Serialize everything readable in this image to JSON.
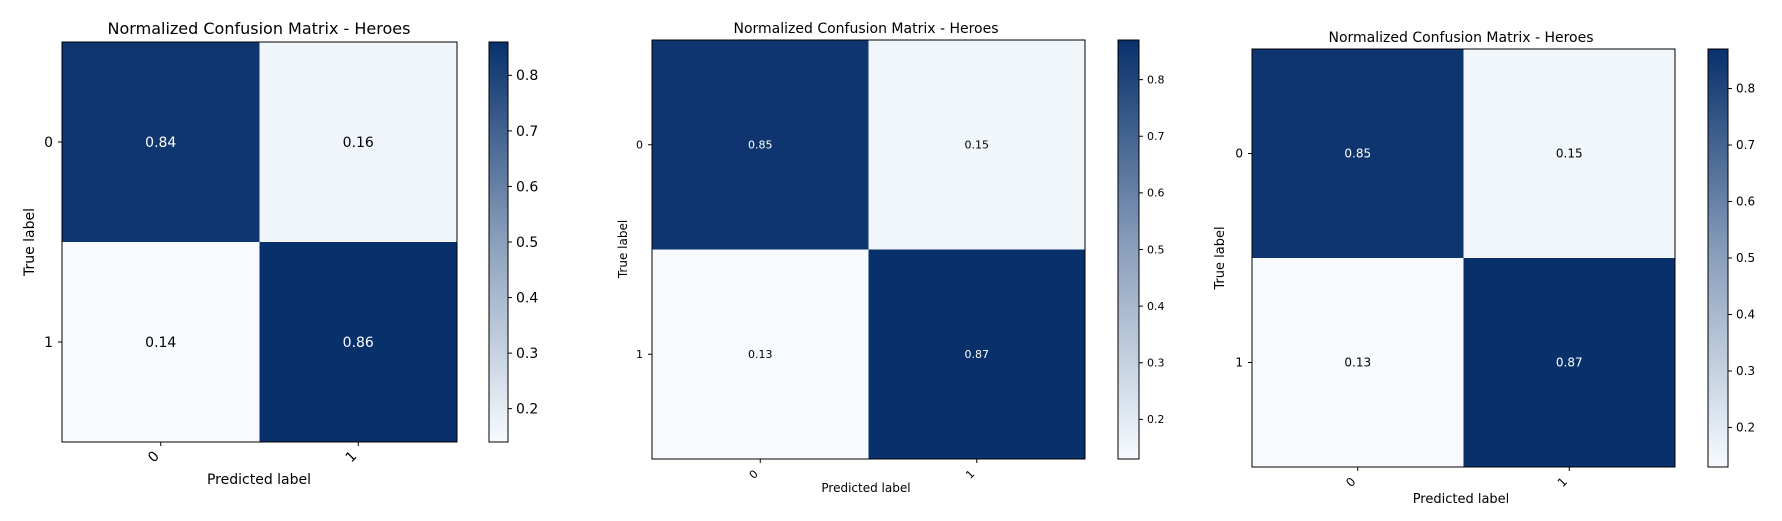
{
  "chart_data": [
    {
      "type": "heatmap",
      "title": "Normalized Confusion Matrix - Heroes",
      "xlabel": "Predicted label",
      "ylabel": "True label",
      "x_categories": [
        "0",
        "1"
      ],
      "y_categories": [
        "0",
        "1"
      ],
      "matrix": [
        [
          0.84,
          0.16
        ],
        [
          0.14,
          0.86
        ]
      ],
      "cell_labels": [
        [
          "0.84",
          "0.16"
        ],
        [
          "0.14",
          "0.86"
        ]
      ],
      "colorbar": {
        "range": [
          0.14,
          0.86
        ],
        "ticks": [
          "0.2",
          "0.3",
          "0.4",
          "0.5",
          "0.6",
          "0.7",
          "0.8"
        ]
      },
      "colormap": {
        "low": "#f7fbff",
        "high": "#08306b"
      },
      "grid": false
    },
    {
      "type": "heatmap",
      "title": "Normalized Confusion Matrix - Heroes",
      "xlabel": "Predicted label",
      "ylabel": "True label",
      "x_categories": [
        "0",
        "1"
      ],
      "y_categories": [
        "0",
        "1"
      ],
      "matrix": [
        [
          0.85,
          0.15
        ],
        [
          0.13,
          0.87
        ]
      ],
      "cell_labels": [
        [
          "0.85",
          "0.15"
        ],
        [
          "0.13",
          "0.87"
        ]
      ],
      "colorbar": {
        "range": [
          0.13,
          0.87
        ],
        "ticks": [
          "0.2",
          "0.3",
          "0.4",
          "0.5",
          "0.6",
          "0.7",
          "0.8"
        ]
      },
      "colormap": {
        "low": "#f7fbff",
        "high": "#08306b"
      },
      "grid": false
    },
    {
      "type": "heatmap",
      "title": "Normalized Confusion Matrix - Heroes",
      "xlabel": "Predicted label",
      "ylabel": "True label",
      "x_categories": [
        "0",
        "1"
      ],
      "y_categories": [
        "0",
        "1"
      ],
      "matrix": [
        [
          0.85,
          0.15
        ],
        [
          0.13,
          0.87
        ]
      ],
      "cell_labels": [
        [
          "0.85",
          "0.15"
        ],
        [
          "0.13",
          "0.87"
        ]
      ],
      "colorbar": {
        "range": [
          0.13,
          0.87
        ],
        "ticks": [
          "0.2",
          "0.3",
          "0.4",
          "0.5",
          "0.6",
          "0.7",
          "0.8"
        ]
      },
      "colormap": {
        "low": "#f7fbff",
        "high": "#08306b"
      },
      "grid": false
    }
  ]
}
